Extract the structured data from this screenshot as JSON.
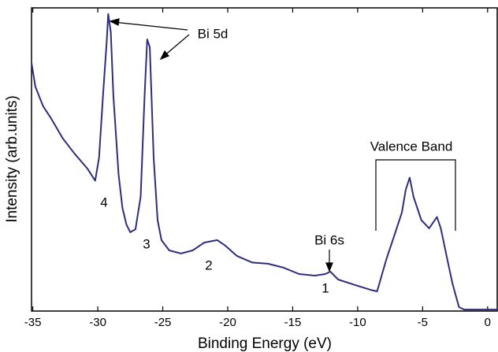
{
  "chart_data": {
    "type": "line",
    "x_label": "Binding Energy (eV)",
    "y_label": "Intensity (arb.units)",
    "xlim": [
      -35.1,
      0.8
    ],
    "xticks": [
      -35,
      -30,
      -25,
      -20,
      -15,
      -10,
      -5,
      0
    ],
    "ylim": [
      0,
      100
    ],
    "grid": false,
    "annotations": [
      "Bi 5d",
      "Bi 6s",
      "Valence Band",
      "1",
      "2",
      "3",
      "4"
    ],
    "series": [
      {
        "color": "#2e2e7a",
        "x": [
          -35.1,
          -34.8,
          -34.2,
          -33.6,
          -32.7,
          -31.8,
          -30.8,
          -30.2,
          -29.9,
          -29.6,
          -29.3,
          -29.2,
          -29.0,
          -28.8,
          -28.4,
          -28.1,
          -27.8,
          -27.5,
          -27.1,
          -26.7,
          -26.4,
          -26.2,
          -26.0,
          -25.7,
          -25.4,
          -25.1,
          -24.5,
          -23.6,
          -22.7,
          -21.8,
          -20.8,
          -20.2,
          -19.3,
          -18.1,
          -16.9,
          -15.7,
          -14.5,
          -13.3,
          -12.5,
          -12.1,
          -11.5,
          -10.2,
          -9.0,
          -8.5,
          -7.8,
          -7.2,
          -6.6,
          -6.3,
          -6.0,
          -5.7,
          -5.1,
          -4.5,
          -3.9,
          -3.6,
          -3.1,
          -2.7,
          -2.2,
          -1.8,
          0.8
        ],
        "values": [
          81.8,
          74,
          67.5,
          63.6,
          57,
          52,
          47,
          43,
          50.6,
          71,
          89.6,
          98,
          92,
          71,
          45,
          34,
          28.6,
          26,
          27,
          37.7,
          71,
          89.6,
          87,
          50.6,
          30,
          23.4,
          20,
          19,
          20,
          22.6,
          23.4,
          21.6,
          18.2,
          16,
          15.6,
          14.3,
          12.2,
          11.7,
          12.2,
          13,
          10.4,
          8.6,
          7,
          6.5,
          17,
          24.7,
          32.5,
          40,
          44,
          37.7,
          30,
          27.3,
          31,
          27.3,
          17,
          9,
          1.3,
          0.5,
          0.5
        ]
      }
    ]
  }
}
